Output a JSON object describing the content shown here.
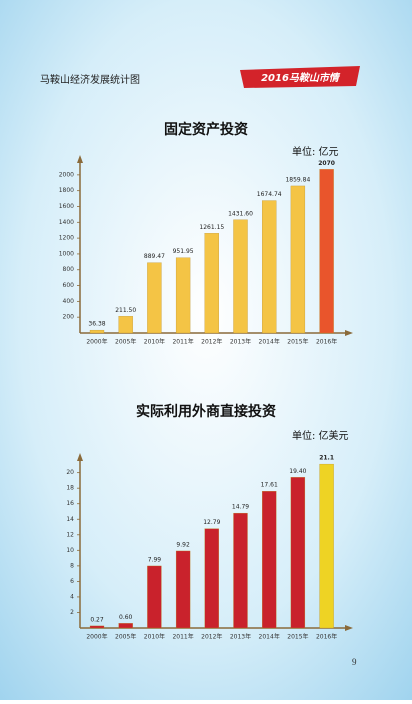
{
  "header": {
    "title": "马鞍山经济发展统计图",
    "banner": "2016马鞍山市情"
  },
  "page_number": "9",
  "chart_data": [
    {
      "type": "bar",
      "title": "固定资产投资",
      "unit": "单位: 亿元",
      "categories": [
        "2000年",
        "2005年",
        "2010年",
        "2011年",
        "2012年",
        "2013年",
        "2014年",
        "2015年",
        "2016年"
      ],
      "values": [
        36.38,
        211.5,
        889.47,
        951.95,
        1261.15,
        1431.6,
        1674.74,
        1859.84,
        2070
      ],
      "value_labels": [
        "36.38",
        "211.50",
        "889.47",
        "951.95",
        "1261.15",
        "1431.60",
        "1674.74",
        "1859.84",
        "2070"
      ],
      "colors": [
        "#f4c445",
        "#f4c445",
        "#f4c445",
        "#f4c445",
        "#f4c445",
        "#f4c445",
        "#f4c445",
        "#f4c445",
        "#e9552c"
      ],
      "ylim": [
        0,
        2150
      ],
      "yticks": [
        200,
        400,
        600,
        800,
        1000,
        1200,
        1400,
        1600,
        1800,
        2000
      ]
    },
    {
      "type": "bar",
      "title": "实际利用外商直接投资",
      "unit": "单位: 亿美元",
      "categories": [
        "2000年",
        "2005年",
        "2010年",
        "2011年",
        "2012年",
        "2013年",
        "2014年",
        "2015年",
        "2016年"
      ],
      "values": [
        0.27,
        0.6,
        7.99,
        9.92,
        12.79,
        14.79,
        17.61,
        19.4,
        21.1
      ],
      "value_labels": [
        "0.27",
        "0.60",
        "7.99",
        "9.92",
        "12.79",
        "14.79",
        "17.61",
        "19.40",
        "21.1"
      ],
      "colors": [
        "#c9222c",
        "#c9222c",
        "#c9222c",
        "#c9222c",
        "#c9222c",
        "#c9222c",
        "#c9222c",
        "#c9222c",
        "#eed324"
      ],
      "ylim": [
        0,
        21.5
      ],
      "yticks": [
        2,
        4,
        6,
        8,
        10,
        12,
        14,
        16,
        18,
        20
      ]
    }
  ]
}
